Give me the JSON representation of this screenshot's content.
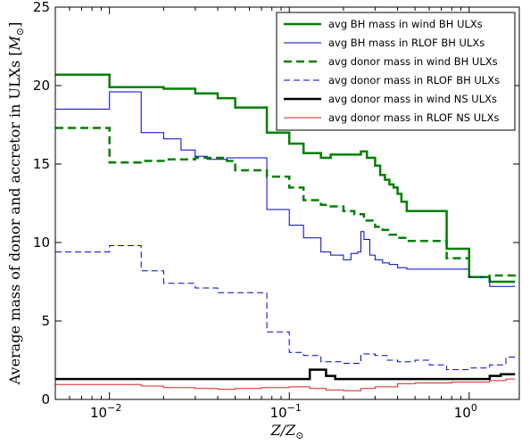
{
  "chart_data": {
    "type": "line",
    "drawstyle": "steps-post",
    "xscale": "log",
    "xlim": [
      0.005,
      1.9
    ],
    "ylim": [
      0,
      25
    ],
    "xlabel": "Z/Z⊙",
    "ylabel": "Average mass of donor and accretor in ULXs [M⊙]",
    "yticks": [
      0,
      5,
      10,
      15,
      20,
      25
    ],
    "ytick_labels": [
      "0",
      "5",
      "10",
      "15",
      "20",
      "25"
    ],
    "xticks_major": [
      0.01,
      0.1,
      1
    ],
    "xtick_labels": [
      {
        "base": "10",
        "exp": "−2"
      },
      {
        "base": "10",
        "exp": "−1"
      },
      {
        "base": "10",
        "exp": "0"
      }
    ],
    "legend_position": "upper right",
    "series": [
      {
        "name": "avg BH mass in wind BH ULXs",
        "color": "#008000",
        "style": "solid",
        "width": 2.5,
        "x": [
          0.005,
          0.01,
          0.015,
          0.02,
          0.03,
          0.04,
          0.05,
          0.075,
          0.1,
          0.12,
          0.15,
          0.17,
          0.2,
          0.25,
          0.27,
          0.3,
          0.32,
          0.34,
          0.36,
          0.38,
          0.4,
          0.42,
          0.45,
          0.5,
          0.75,
          1.0,
          1.3,
          1.8
        ],
        "y": [
          20.7,
          19.9,
          19.9,
          19.8,
          19.5,
          19.2,
          18.6,
          17.0,
          16.3,
          15.7,
          15.4,
          15.6,
          15.6,
          15.8,
          15.4,
          14.9,
          14.3,
          14.0,
          13.7,
          13.5,
          13.1,
          12.6,
          12.0,
          12.0,
          9.6,
          7.8,
          7.5,
          7.5
        ]
      },
      {
        "name": "avg BH mass in RLOF BH ULXs",
        "color": "#0000cc",
        "style": "solid",
        "width": 1,
        "x": [
          0.005,
          0.01,
          0.012,
          0.015,
          0.02,
          0.025,
          0.03,
          0.035,
          0.045,
          0.05,
          0.075,
          0.1,
          0.12,
          0.15,
          0.17,
          0.2,
          0.22,
          0.24,
          0.25,
          0.26,
          0.28,
          0.3,
          0.33,
          0.36,
          0.4,
          0.45,
          0.5,
          0.7,
          1.0,
          1.3,
          1.8
        ],
        "y": [
          18.5,
          19.6,
          19.6,
          17.0,
          16.6,
          15.9,
          15.5,
          15.3,
          15.4,
          15.4,
          12.1,
          11.1,
          10.3,
          9.4,
          9.2,
          8.9,
          9.3,
          9.4,
          10.7,
          10.2,
          9.2,
          8.9,
          8.7,
          8.6,
          8.4,
          8.3,
          8.3,
          8.3,
          7.8,
          7.2,
          7.2
        ]
      },
      {
        "name": "avg donor mass in wind BH ULXs",
        "color": "#008000",
        "style": "dashed",
        "width": 2.5,
        "x": [
          0.005,
          0.01,
          0.015,
          0.02,
          0.03,
          0.045,
          0.05,
          0.075,
          0.1,
          0.12,
          0.15,
          0.17,
          0.2,
          0.23,
          0.26,
          0.3,
          0.33,
          0.36,
          0.4,
          0.45,
          0.5,
          0.75,
          1.0,
          1.3,
          1.8
        ],
        "y": [
          17.3,
          15.1,
          15.2,
          15.3,
          15.4,
          15.2,
          14.6,
          14.2,
          13.5,
          12.7,
          12.4,
          12.3,
          12.0,
          11.8,
          11.4,
          11.0,
          10.8,
          10.5,
          10.3,
          10.1,
          10.1,
          9.0,
          7.8,
          7.9,
          8.0
        ]
      },
      {
        "name": "avg donor mass in RLOF BH ULXs",
        "color": "#0000cc",
        "style": "dashed",
        "width": 1,
        "x": [
          0.005,
          0.01,
          0.015,
          0.02,
          0.03,
          0.04,
          0.05,
          0.075,
          0.1,
          0.12,
          0.15,
          0.2,
          0.25,
          0.3,
          0.35,
          0.4,
          0.5,
          0.6,
          0.75,
          1.0,
          1.3,
          1.6,
          1.8
        ],
        "y": [
          9.4,
          9.8,
          8.2,
          7.4,
          7.1,
          6.8,
          6.8,
          4.3,
          3.0,
          2.8,
          2.4,
          2.3,
          2.9,
          2.8,
          2.5,
          2.4,
          2.5,
          2.2,
          1.9,
          2.0,
          2.2,
          2.7,
          2.7
        ]
      },
      {
        "name": "avg donor mass in wind NS ULXs",
        "color": "#000000",
        "style": "solid",
        "width": 2.5,
        "x": [
          0.005,
          0.01,
          0.05,
          0.1,
          0.13,
          0.16,
          0.18,
          0.3,
          0.5,
          0.8,
          1.0,
          1.3,
          1.5,
          1.8
        ],
        "y": [
          1.3,
          1.3,
          1.3,
          1.3,
          1.9,
          1.5,
          1.3,
          1.3,
          1.3,
          1.3,
          1.3,
          1.5,
          1.6,
          1.6
        ]
      },
      {
        "name": "avg donor mass in RLOF NS ULXs",
        "color": "#dd2222",
        "style": "solid",
        "width": 1,
        "x": [
          0.005,
          0.01,
          0.015,
          0.02,
          0.03,
          0.04,
          0.05,
          0.07,
          0.1,
          0.13,
          0.16,
          0.2,
          0.25,
          0.3,
          0.4,
          0.5,
          0.8,
          1.0,
          1.3,
          1.6,
          1.8
        ],
        "y": [
          0.95,
          0.95,
          0.85,
          0.75,
          0.7,
          0.65,
          0.7,
          0.75,
          0.8,
          0.7,
          0.6,
          0.55,
          0.7,
          0.8,
          1.0,
          1.05,
          1.1,
          1.1,
          1.2,
          1.3,
          1.3
        ]
      }
    ]
  }
}
